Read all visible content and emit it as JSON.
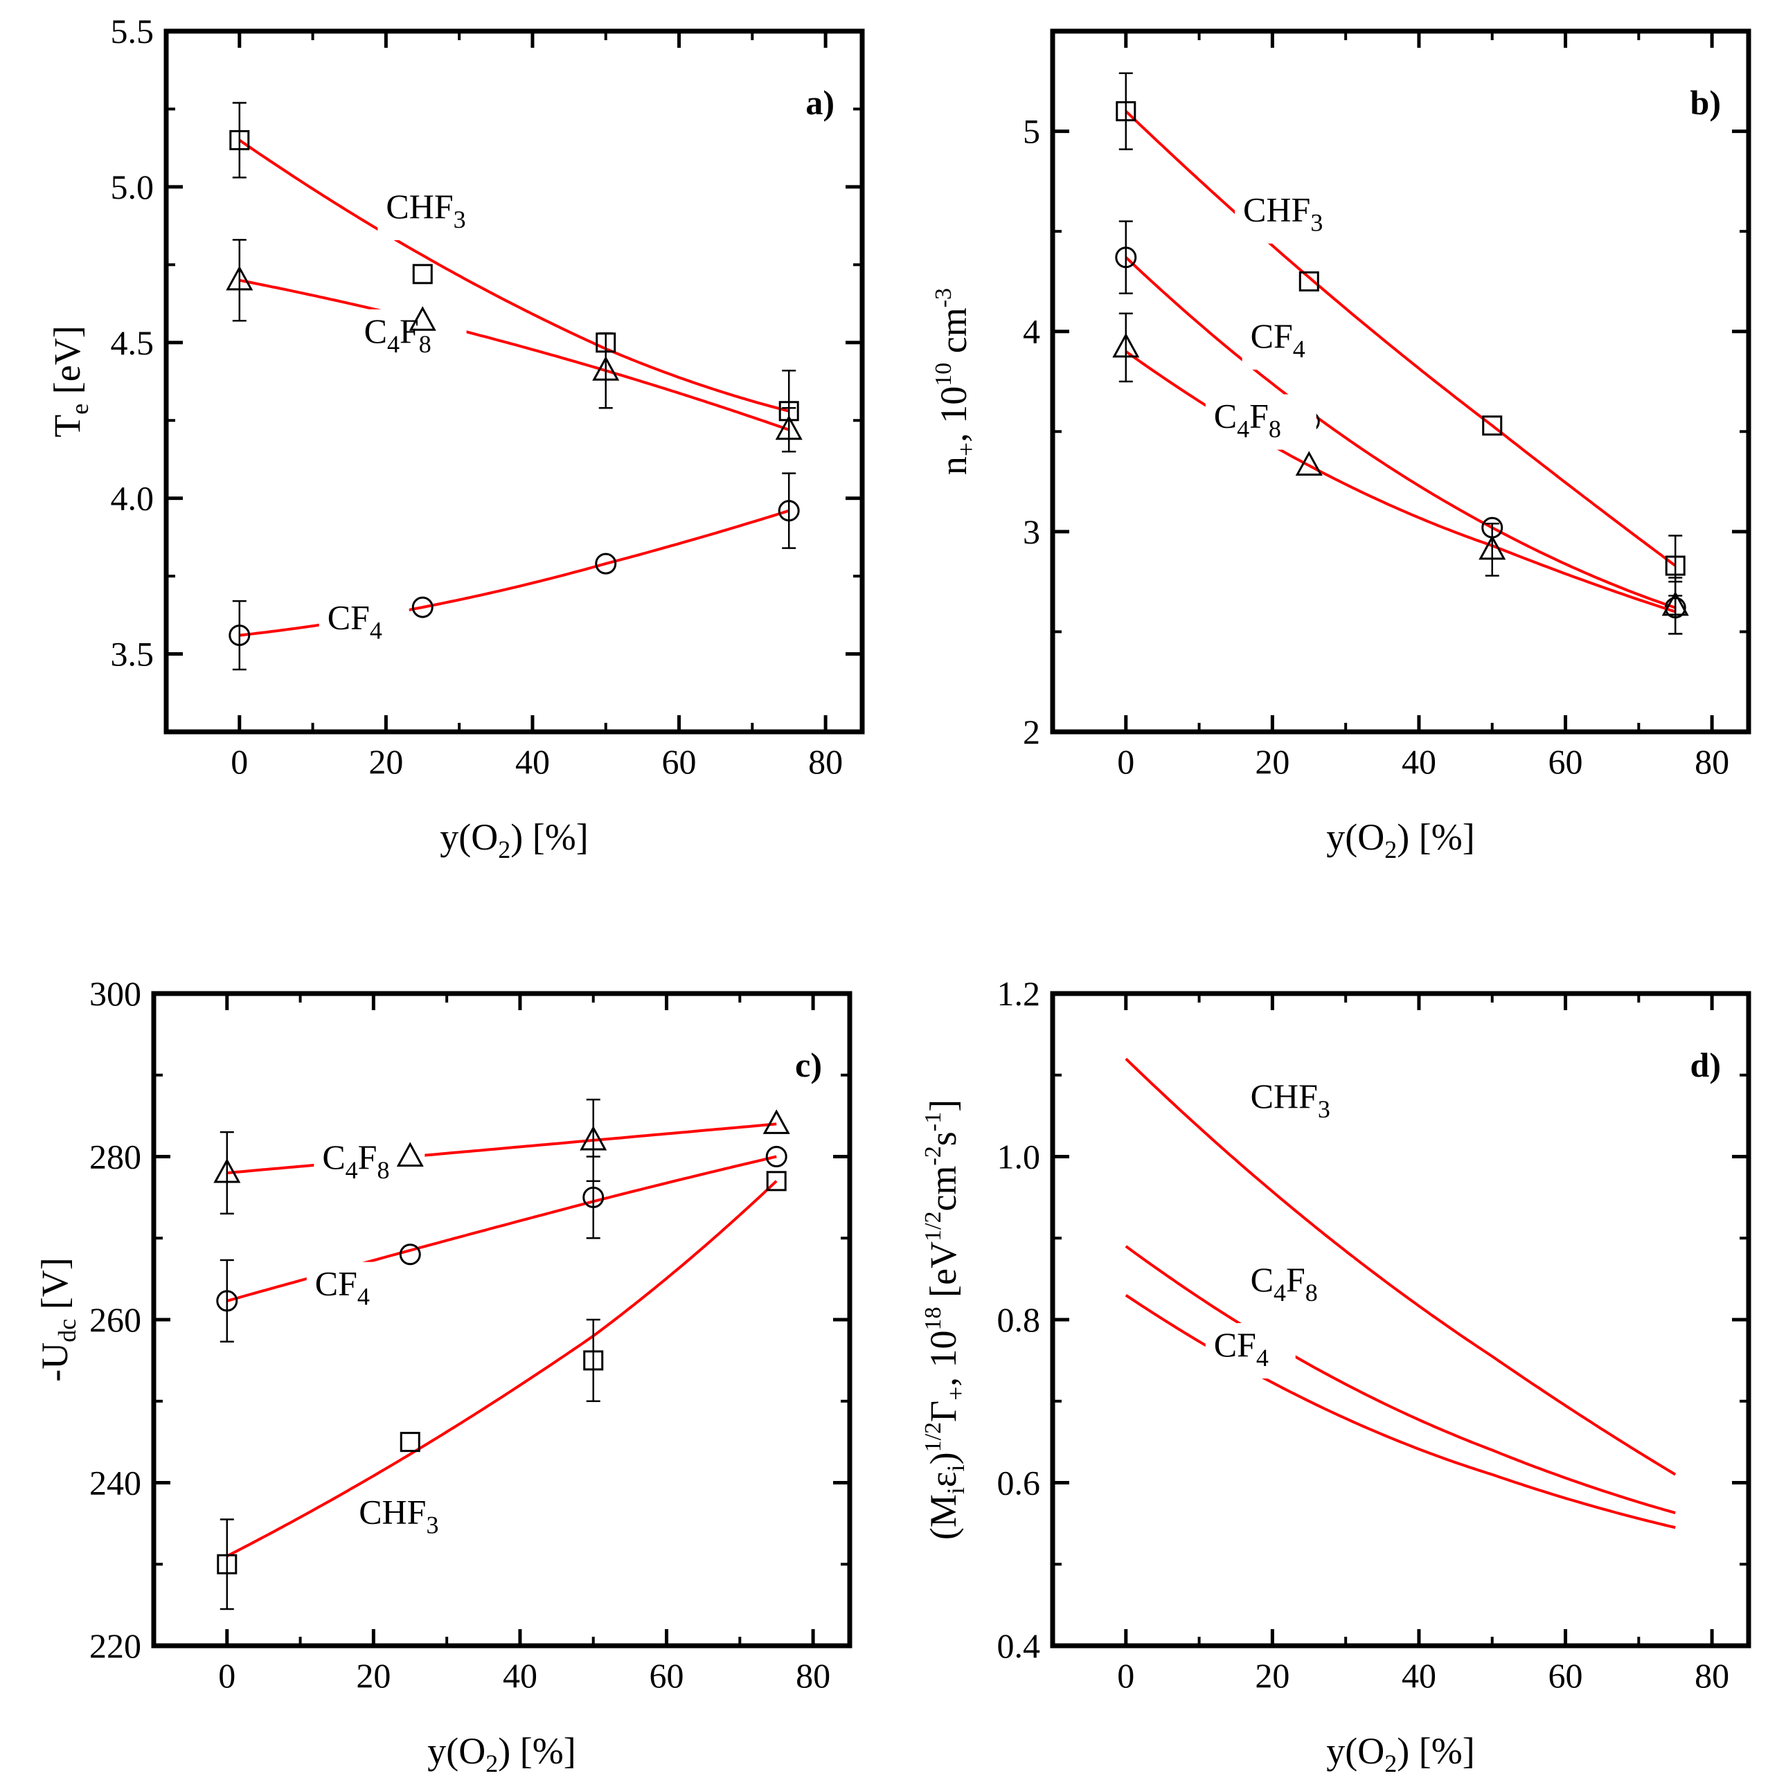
{
  "colors": {
    "fit_line": "#ff0000",
    "axes": "#000000",
    "marker": "#000000",
    "background": "#ffffff"
  },
  "chart_data": [
    {
      "panel": "a)",
      "type": "scatter",
      "xlabel": {
        "main": "y(O",
        "sub": "2",
        "tail": ") [%]"
      },
      "ylabel": {
        "main": "T",
        "sub": "e",
        "tail": " [eV]"
      },
      "xlim": [
        -10,
        85
      ],
      "ylim": [
        3.25,
        5.5
      ],
      "xticks": [
        0,
        20,
        40,
        60,
        80
      ],
      "xtick_labels": [
        "0",
        "20",
        "40",
        "60",
        "80"
      ],
      "yticks": [
        3.5,
        4.0,
        4.5,
        5.0,
        5.5
      ],
      "ytick_labels": [
        "3.5",
        "4.0",
        "4.5",
        "5.0",
        "5.5"
      ],
      "series": [
        {
          "name": "CHF3",
          "label": {
            "main": "CHF",
            "sub": "3"
          },
          "marker": "square",
          "x": [
            0,
            25,
            50,
            75
          ],
          "y": [
            5.15,
            4.72,
            4.5,
            4.28
          ],
          "err": [
            0.12,
            0,
            0,
            0.13
          ],
          "fit": [
            5.15,
            4.78,
            4.48,
            4.28
          ],
          "label_at": [
            20,
            4.9
          ]
        },
        {
          "name": "C4F8",
          "label": {
            "main": "C",
            "sub": "4",
            "main2": "F",
            "sub2": "8"
          },
          "marker": "triangle",
          "x": [
            0,
            25,
            50,
            75
          ],
          "y": [
            4.7,
            4.57,
            4.41,
            4.22
          ],
          "err": [
            0.13,
            0,
            0.12,
            0.07
          ],
          "fit": [
            4.7,
            4.57,
            4.41,
            4.22
          ],
          "label_at": [
            17,
            4.5
          ]
        },
        {
          "name": "CF4",
          "label": {
            "main": "CF",
            "sub": "4"
          },
          "marker": "circle",
          "x": [
            0,
            25,
            50,
            75
          ],
          "y": [
            3.56,
            3.65,
            3.79,
            3.96
          ],
          "err": [
            0.11,
            0,
            0,
            0.12
          ],
          "fit": [
            3.56,
            3.65,
            3.79,
            3.96
          ],
          "label_at": [
            12,
            3.58
          ]
        }
      ]
    },
    {
      "panel": "b)",
      "type": "scatter",
      "xlabel": {
        "main": "y(O",
        "sub": "2",
        "tail": ") [%]"
      },
      "ylabel": {
        "main": "n",
        "sub": "+",
        "tail": ", 10",
        "sup": "10",
        "tail2": " cm",
        "sup2": "-3"
      },
      "xlim": [
        -10,
        85
      ],
      "ylim": [
        2,
        5.5
      ],
      "xticks": [
        0,
        20,
        40,
        60,
        80
      ],
      "xtick_labels": [
        "0",
        "20",
        "40",
        "60",
        "80"
      ],
      "yticks": [
        2,
        3,
        4,
        5
      ],
      "ytick_labels": [
        "2",
        "3",
        "4",
        "5"
      ],
      "series": [
        {
          "name": "CHF3",
          "label": {
            "main": "CHF",
            "sub": "3"
          },
          "marker": "square",
          "x": [
            0,
            25,
            50,
            75
          ],
          "y": [
            5.1,
            4.25,
            3.53,
            2.83
          ],
          "err": [
            0.19,
            0,
            0,
            0.15
          ],
          "fit": [
            5.1,
            4.27,
            3.53,
            2.83
          ],
          "label_at": [
            16,
            4.55
          ]
        },
        {
          "name": "CF4",
          "label": {
            "main": "CF",
            "sub": "4"
          },
          "marker": "circle",
          "x": [
            0,
            25,
            50,
            75
          ],
          "y": [
            4.37,
            3.55,
            3.02,
            2.62
          ],
          "err": [
            0.18,
            0,
            0,
            0.13
          ],
          "fit": [
            4.37,
            3.6,
            3.02,
            2.62
          ],
          "label_at": [
            17,
            3.92
          ]
        },
        {
          "name": "C4F8",
          "label": {
            "main": "C",
            "sub": "4",
            "main2": "F",
            "sub2": "8"
          },
          "marker": "triangle",
          "x": [
            0,
            25,
            50,
            75
          ],
          "y": [
            3.92,
            3.33,
            2.91,
            2.63
          ],
          "err": [
            0.17,
            0,
            0.13,
            0.14
          ],
          "fit": [
            3.9,
            3.33,
            2.93,
            2.6
          ],
          "label_at": [
            12,
            3.52
          ]
        }
      ]
    },
    {
      "panel": "c)",
      "type": "scatter",
      "xlabel": {
        "main": "y(O",
        "sub": "2",
        "tail": ") [%]"
      },
      "ylabel": {
        "main": "-U",
        "sub": "dc",
        "tail": " [V]"
      },
      "xlim": [
        -10,
        85
      ],
      "ylim": [
        220,
        300
      ],
      "xticks": [
        0,
        20,
        40,
        60,
        80
      ],
      "xtick_labels": [
        "0",
        "20",
        "40",
        "60",
        "80"
      ],
      "yticks": [
        220,
        240,
        260,
        280,
        300
      ],
      "ytick_labels": [
        "220",
        "240",
        "260",
        "280",
        "300"
      ],
      "series": [
        {
          "name": "C4F8",
          "label": {
            "main": "C",
            "sub": "4",
            "main2": "F",
            "sub2": "8"
          },
          "marker": "triangle",
          "x": [
            0,
            25,
            50,
            75
          ],
          "y": [
            278,
            280,
            282,
            284
          ],
          "err": [
            5,
            0,
            5,
            0
          ],
          "fit": [
            278,
            280,
            282,
            284
          ],
          "label_at": [
            13,
            278.5
          ]
        },
        {
          "name": "CF4",
          "label": {
            "main": "CF",
            "sub": "4"
          },
          "marker": "circle",
          "x": [
            0,
            25,
            50,
            75
          ],
          "y": [
            262.3,
            268,
            275,
            280
          ],
          "err": [
            5,
            0,
            5,
            0
          ],
          "fit": [
            262.3,
            268.5,
            274.5,
            280
          ],
          "label_at": [
            12,
            263
          ]
        },
        {
          "name": "CHF3",
          "label": {
            "main": "CHF",
            "sub": "3"
          },
          "marker": "square",
          "x": [
            0,
            25,
            50,
            75
          ],
          "y": [
            230,
            245,
            255,
            277
          ],
          "err": [
            5.5,
            0,
            5,
            0
          ],
          "fit": [
            231,
            243.5,
            258,
            277
          ],
          "label_at": [
            18,
            235
          ]
        }
      ]
    },
    {
      "panel": "d)",
      "type": "line",
      "xlabel": {
        "main": "y(O",
        "sub": "2",
        "tail": ") [%]"
      },
      "ylabel": {
        "p1": "(M",
        "s1": "i",
        "p2": "ε",
        "s2": "i",
        "p3": ")",
        "sup1": "1/2",
        "p4": "Γ",
        "s3": "+",
        "p5": ", 10",
        "sup2": "18",
        "p6": " [eV",
        "sup3": "1/2",
        "p7": "cm",
        "sup4": "-2",
        "p8": "s",
        "sup5": "-1",
        "p9": "]"
      },
      "xlim": [
        -10,
        85
      ],
      "ylim": [
        0.4,
        1.2
      ],
      "xticks": [
        0,
        20,
        40,
        60,
        80
      ],
      "xtick_labels": [
        "0",
        "20",
        "40",
        "60",
        "80"
      ],
      "yticks": [
        0.4,
        0.6,
        0.8,
        1.0,
        1.2
      ],
      "ytick_labels": [
        "0.4",
        "0.6",
        "0.8",
        "1.0",
        "1.2"
      ],
      "series": [
        {
          "name": "CHF3",
          "label": {
            "main": "CHF",
            "sub": "3"
          },
          "x": [
            0,
            25,
            50,
            75
          ],
          "fit": [
            1.12,
            0.92,
            0.755,
            0.61
          ],
          "label_at": [
            17,
            1.06
          ]
        },
        {
          "name": "C4F8",
          "label": {
            "main": "C",
            "sub": "4",
            "main2": "F",
            "sub2": "8"
          },
          "x": [
            0,
            25,
            50,
            75
          ],
          "fit": [
            0.89,
            0.745,
            0.64,
            0.563
          ],
          "label_at": [
            17,
            0.835
          ]
        },
        {
          "name": "CF4",
          "label": {
            "main": "CF",
            "sub": "4"
          },
          "x": [
            0,
            25,
            50,
            75
          ],
          "fit": [
            0.83,
            0.7,
            0.61,
            0.545
          ],
          "label_at": [
            12,
            0.755
          ]
        }
      ]
    }
  ]
}
